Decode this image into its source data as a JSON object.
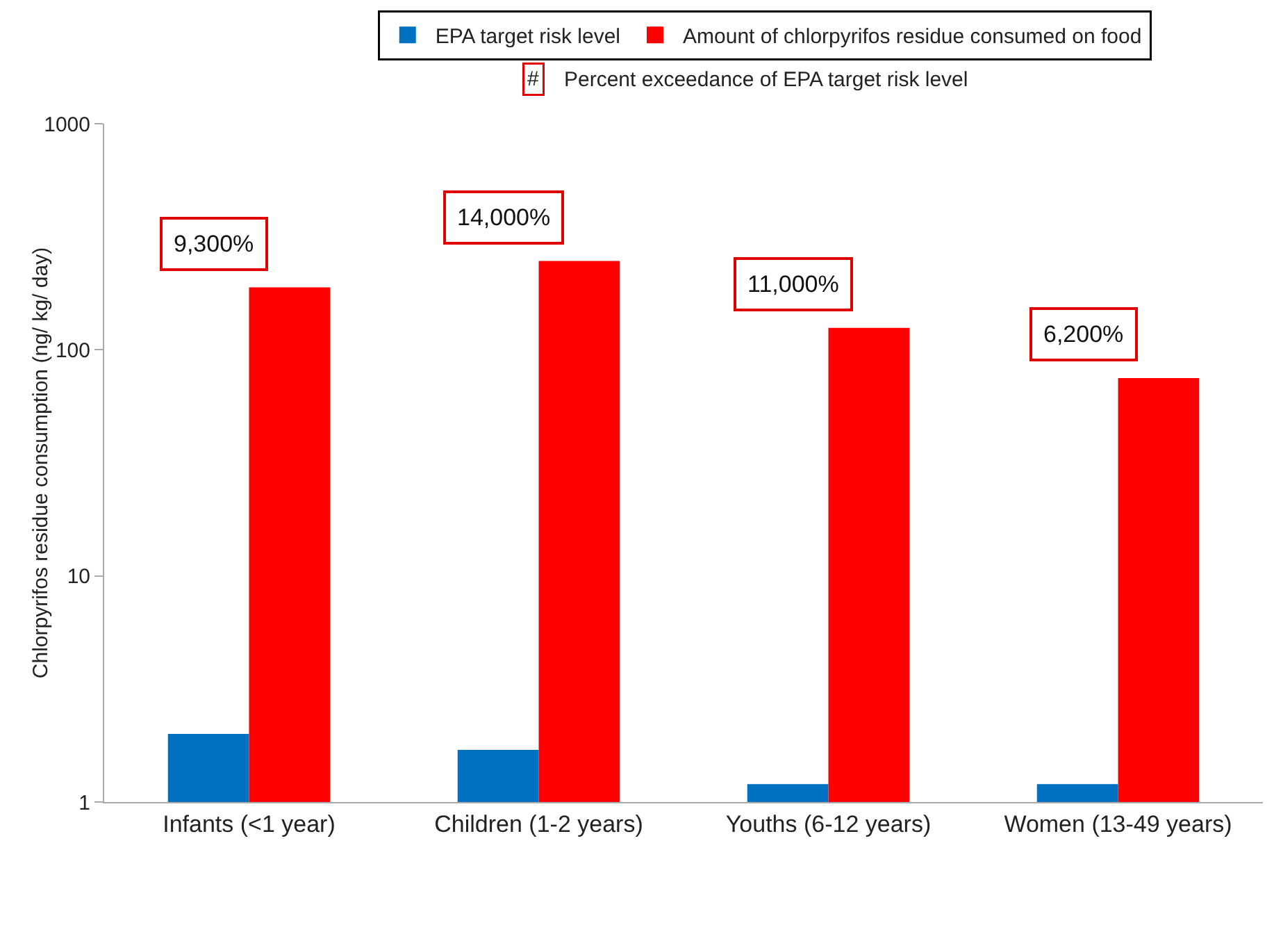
{
  "chart_data": {
    "type": "bar",
    "ylabel": "Chlorpyrifos residue consumption (ng/ kg/ day)",
    "categories": [
      "Infants (<1 year)",
      "Children (1-2 years)",
      "Youths (6-12 years)",
      "Women (13-49 years)"
    ],
    "series": [
      {
        "name": "EPA target risk level",
        "color": "#0070c0",
        "values": [
          2.0,
          1.7,
          1.2,
          1.2
        ]
      },
      {
        "name": "Amount of chlorpyrifos residue consumed on food",
        "color": "#ff0000",
        "values": [
          189,
          247,
          125,
          75
        ]
      }
    ],
    "log": true,
    "ylim": [
      1,
      1000
    ],
    "yticks": [
      1,
      10,
      100,
      1000
    ],
    "grid": false,
    "legend": "top",
    "annotations": [
      "#",
      "Percent exceedance of EPA target risk level",
      "9,300%",
      "14,000%",
      "11,000%",
      "6,200%"
    ]
  }
}
